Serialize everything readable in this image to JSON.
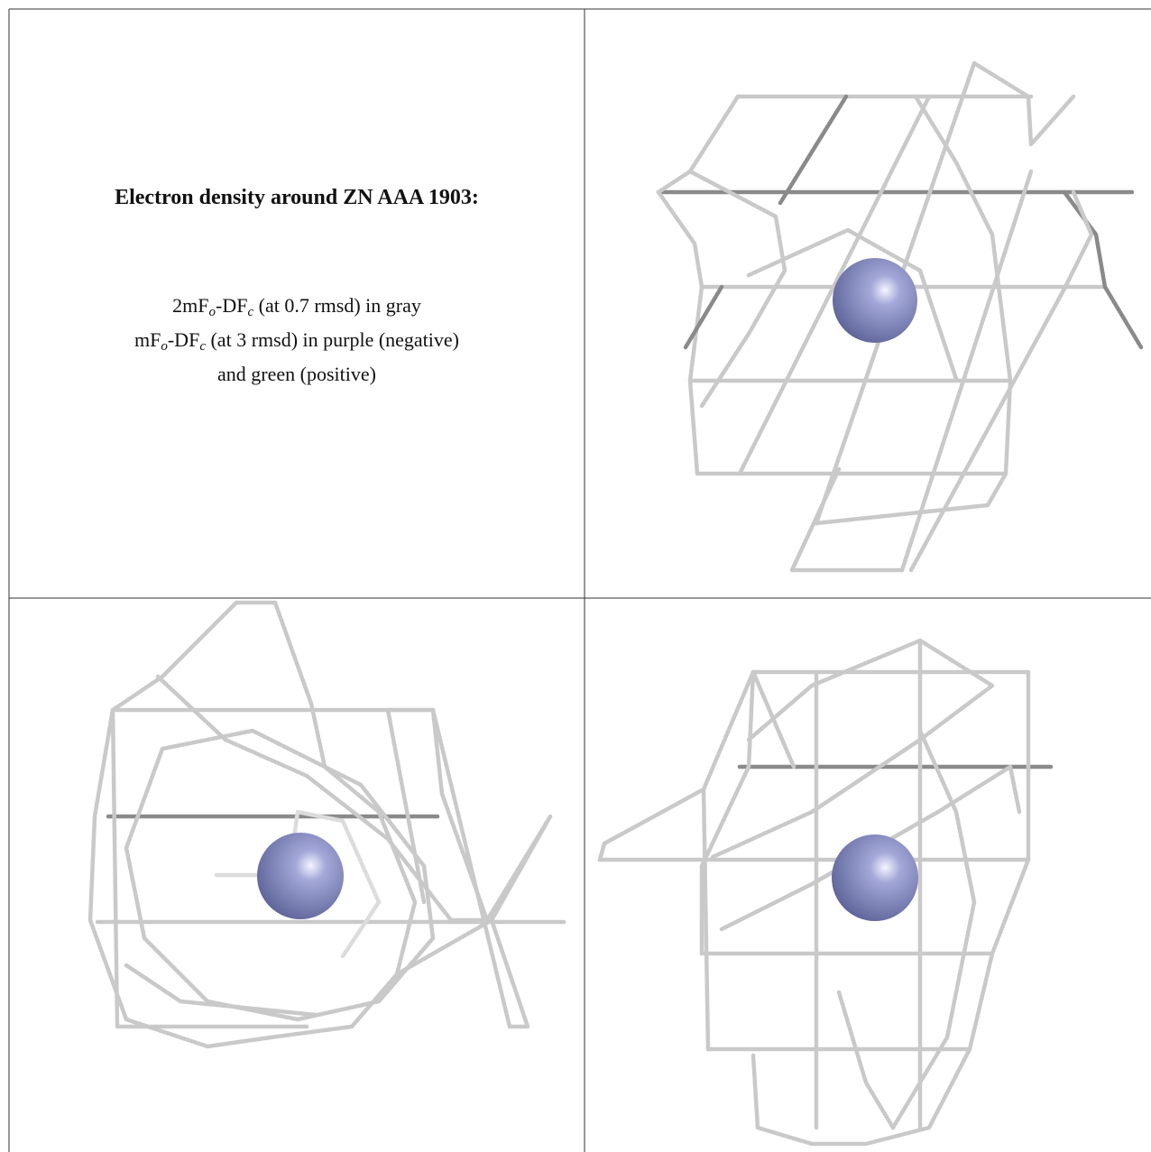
{
  "title": "Electron density around ZN AAA 1903:",
  "legend": {
    "line1": [
      "2mF",
      "o",
      "-DF",
      "c",
      " (at 0.7 rmsd) in gray"
    ],
    "line2": [
      "mF",
      "o",
      "-DF",
      "c",
      " (at 3 rmsd) in purple (negative)"
    ],
    "line3": "and green (positive)"
  }
}
